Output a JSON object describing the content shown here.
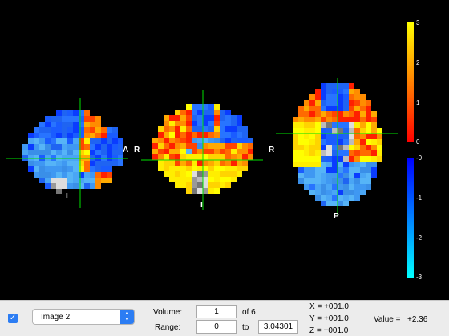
{
  "orientation": {
    "sag_front": "A",
    "sag_bottom": "I",
    "cor_left": "R",
    "cor_bottom": "I",
    "ax_left": "R",
    "ax_bottom": "P"
  },
  "colorbar": {
    "positive_ticks": [
      "3",
      "2",
      "1",
      "0"
    ],
    "negative_ticks": [
      "-0",
      "-1",
      "-2",
      "-3"
    ],
    "positive_colors": [
      "#ff0000",
      "#ffff00"
    ],
    "negative_colors": [
      "#0000ff",
      "#00ffff"
    ]
  },
  "controls": {
    "checkbox_checked": true,
    "image_select": "Image 2",
    "volume_label": "Volume:",
    "volume_value": "1",
    "volume_total": "of 6",
    "range_label": "Range:",
    "range_min": "0",
    "range_to": "to",
    "range_max": "3.04301",
    "coord_x": "X = +001.0",
    "coord_y": "Y = +001.0",
    "coord_z": "Z = +001.0",
    "value_label": "Value =",
    "value": "+2.36"
  }
}
